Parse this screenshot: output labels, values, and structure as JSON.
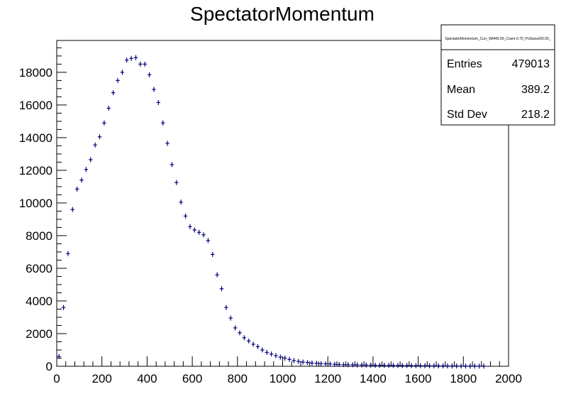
{
  "chart_data": {
    "type": "scatter",
    "title": "SpectatorMomentum",
    "xlabel": "",
    "ylabel": "",
    "xlim": [
      0,
      2000
    ],
    "ylim": [
      0,
      19950
    ],
    "x_ticks": [
      0,
      200,
      400,
      600,
      800,
      1000,
      1200,
      1400,
      1600,
      1800,
      2000
    ],
    "y_ticks": [
      0,
      2000,
      4000,
      6000,
      8000,
      10000,
      12000,
      14000,
      16000,
      18000
    ],
    "grid": false,
    "marker_color": "#000080",
    "bin_width": 20,
    "series": [
      {
        "x": [
          10,
          30,
          50,
          70,
          90,
          110,
          130,
          150,
          170,
          190,
          210,
          230,
          250,
          270,
          290,
          310,
          330,
          350,
          370,
          390,
          410,
          430,
          450,
          470,
          490,
          510,
          530,
          550,
          570,
          590,
          610,
          630,
          650,
          670,
          690,
          710,
          730,
          750,
          770,
          790,
          810,
          830,
          850,
          870,
          890,
          910,
          930,
          950,
          970,
          990,
          1010,
          1030,
          1050,
          1070,
          1090,
          1110,
          1130,
          1150,
          1170,
          1190,
          1210,
          1230,
          1250,
          1270,
          1290,
          1310,
          1330,
          1350,
          1370,
          1390,
          1410,
          1430,
          1450,
          1470,
          1490,
          1510,
          1530,
          1550,
          1570,
          1590,
          1610,
          1630,
          1650,
          1670,
          1690,
          1710,
          1730,
          1750,
          1770,
          1790,
          1810,
          1830,
          1850,
          1870,
          1890
        ],
        "y": [
          600,
          3600,
          6900,
          9600,
          10850,
          11400,
          12050,
          12650,
          13550,
          14050,
          14900,
          15800,
          16750,
          17500,
          18000,
          18750,
          18850,
          18900,
          18500,
          18500,
          17850,
          16950,
          16150,
          14900,
          13650,
          12350,
          11250,
          10050,
          9200,
          8550,
          8350,
          8200,
          8050,
          7700,
          6850,
          5600,
          4750,
          3600,
          2950,
          2350,
          2050,
          1750,
          1550,
          1350,
          1200,
          1000,
          850,
          750,
          650,
          560,
          500,
          420,
          350,
          300,
          260,
          230,
          200,
          180,
          160,
          150,
          140,
          120,
          110,
          100,
          95,
          90,
          85,
          80,
          75,
          70,
          65,
          60,
          60,
          55,
          50,
          50,
          45,
          45,
          40,
          40,
          35,
          35,
          30,
          30,
          25,
          25,
          20,
          20,
          20,
          15,
          15,
          15,
          15,
          10,
          10
        ]
      }
    ]
  },
  "stats": {
    "title": "SpectatorMomentum_Curr_Wt445.00_Cosm-0.70_PoSsaveD0.50_",
    "rows": [
      {
        "label": "Entries",
        "value": "479013"
      },
      {
        "label": "Mean",
        "value": "389.2"
      },
      {
        "label": "Std Dev",
        "value": "218.2"
      }
    ]
  }
}
